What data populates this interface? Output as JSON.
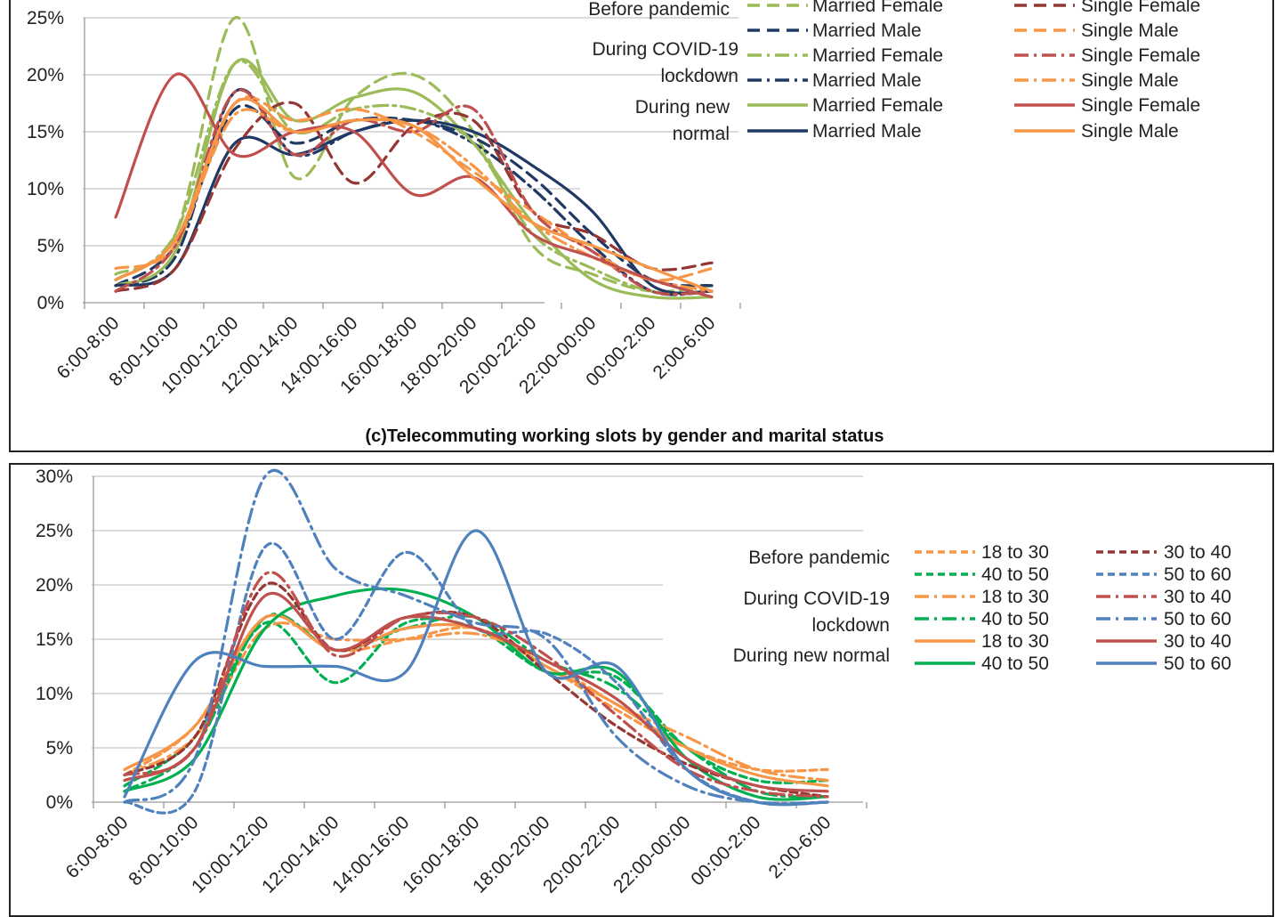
{
  "chart_data": [
    {
      "type": "line",
      "title": "(c)Telecommuting working slots by gender and marital status",
      "categories": [
        "6:00-8:00",
        "8:00-10:00",
        "10:00-12:00",
        "12:00-14:00",
        "14:00-16:00",
        "16:00-18:00",
        "18:00-20:00",
        "20:00-22:00",
        "22:00-00:00",
        "00:00-2:00",
        "2:00-6:00"
      ],
      "ylim": [
        0,
        25
      ],
      "y_ticks": [
        "0%",
        "5%",
        "10%",
        "15%",
        "20%",
        "25%"
      ],
      "grid": true,
      "legend_position": "top-right",
      "legend_groups": [
        "Before pandemic",
        "During COVID-19 lockdown",
        "During new normal"
      ],
      "series": [
        {
          "name": "Married Female",
          "group": "Before pandemic",
          "color": "#9bbb59",
          "dash": "long-dash",
          "values": [
            2.5,
            6,
            25,
            11,
            18,
            20,
            15,
            5,
            2.5,
            1,
            1.5
          ]
        },
        {
          "name": "Married Male",
          "group": "Before pandemic",
          "color": "#1f3864",
          "dash": "long-dash",
          "values": [
            1.5,
            5,
            17,
            14,
            16,
            16,
            14.5,
            11,
            6,
            2,
            1.5
          ]
        },
        {
          "name": "Married Female",
          "group": "During COVID-19 lockdown",
          "color": "#9bbb59",
          "dash": "dash-dot",
          "values": [
            2,
            6,
            21,
            15,
            17,
            17,
            14,
            6,
            3,
            1,
            1
          ]
        },
        {
          "name": "Married Male",
          "group": "During COVID-19 lockdown",
          "color": "#1f3864",
          "dash": "dash-dot",
          "values": [
            1.5,
            4,
            18.5,
            13,
            15,
            16,
            14,
            10,
            5,
            1,
            1
          ]
        },
        {
          "name": "Married Female",
          "group": "During new normal",
          "color": "#9bbb59",
          "dash": "solid",
          "values": [
            1.5,
            4.5,
            21,
            16,
            18,
            18.5,
            14,
            7,
            2,
            0.5,
            0.5
          ]
        },
        {
          "name": "Married Male",
          "group": "During new normal",
          "color": "#1f3864",
          "dash": "solid",
          "values": [
            1.5,
            3,
            14,
            13,
            15,
            16,
            15,
            12,
            8,
            1.5,
            1
          ]
        },
        {
          "name": "Single Female",
          "group": "Before pandemic",
          "color": "#943634",
          "dash": "long-dash",
          "values": [
            1,
            3,
            13.5,
            17.5,
            10.5,
            15.5,
            16,
            8,
            6,
            3,
            3.5
          ]
        },
        {
          "name": "Single Male",
          "group": "Before pandemic",
          "color": "#f79646",
          "dash": "long-dash",
          "values": [
            3,
            5,
            17.5,
            16,
            17,
            15,
            11.5,
            8,
            4.5,
            2,
            3
          ]
        },
        {
          "name": "Single Female",
          "group": "During COVID-19 lockdown",
          "color": "#c0504d",
          "dash": "dash-dot",
          "values": [
            1,
            5,
            18.5,
            13,
            16,
            15,
            17,
            8,
            4.5,
            1,
            1
          ]
        },
        {
          "name": "Single Male",
          "group": "During COVID-19 lockdown",
          "color": "#f79646",
          "dash": "dash-dot",
          "values": [
            2,
            5.5,
            16.5,
            15,
            16,
            15.5,
            12,
            7,
            4,
            2,
            1
          ]
        },
        {
          "name": "Single Female",
          "group": "During new normal",
          "color": "#c0504d",
          "dash": "solid",
          "values": [
            7.5,
            20,
            13,
            15,
            15,
            9.5,
            11,
            6,
            4,
            2,
            0.5
          ]
        },
        {
          "name": "Single Male",
          "group": "During new normal",
          "color": "#f79646",
          "dash": "solid",
          "values": [
            2,
            5.5,
            17.5,
            15,
            16,
            15.5,
            11,
            7,
            5,
            3,
            1
          ]
        }
      ]
    },
    {
      "type": "line",
      "title": "",
      "categories": [
        "6:00-8:00",
        "8:00-10:00",
        "10:00-12:00",
        "12:00-14:00",
        "14:00-16:00",
        "16:00-18:00",
        "18:00-20:00",
        "20:00-22:00",
        "22:00-00:00",
        "00:00-2:00",
        "2:00-6:00"
      ],
      "ylim": [
        0,
        30
      ],
      "y_ticks": [
        "0%",
        "5%",
        "10%",
        "15%",
        "20%",
        "25%",
        "30%"
      ],
      "grid": true,
      "legend_position": "right",
      "legend_groups": [
        "Before pandemic",
        "During COVID-19 lockdown",
        "During new normal"
      ],
      "series": [
        {
          "name": "18 to 30",
          "group": "Before pandemic",
          "color": "#f79646",
          "dash": "short-dash",
          "values": [
            2.5,
            7,
            17,
            14,
            15,
            16,
            12.5,
            8.5,
            5,
            3,
            3
          ]
        },
        {
          "name": "40 to 50",
          "group": "Before pandemic",
          "color": "#00b050",
          "dash": "short-dash",
          "values": [
            1.5,
            6,
            16.5,
            11,
            16.5,
            16,
            12,
            11.5,
            5,
            2,
            2
          ]
        },
        {
          "name": "18 to 30",
          "group": "During COVID-19 lockdown",
          "color": "#f79646",
          "dash": "dash-dot",
          "values": [
            2.5,
            6,
            16,
            15,
            15,
            15.5,
            13,
            9,
            6,
            3,
            2
          ]
        },
        {
          "name": "40 to 50",
          "group": "During COVID-19 lockdown",
          "color": "#00b050",
          "dash": "dash-dot",
          "values": [
            1,
            5,
            17,
            14,
            16,
            17,
            13,
            10.5,
            5,
            1,
            0.5
          ]
        },
        {
          "name": "18 to 30",
          "group": "During new normal",
          "color": "#f79646",
          "dash": "solid",
          "values": [
            3,
            7,
            17,
            14,
            16,
            16,
            12.5,
            9,
            5,
            2.5,
            1.5
          ]
        },
        {
          "name": "40 to 50",
          "group": "During new normal",
          "color": "#00b050",
          "dash": "solid",
          "values": [
            1,
            4,
            16,
            19,
            19.5,
            17,
            12,
            12,
            4,
            0.5,
            0.5
          ]
        },
        {
          "name": "30 to 40",
          "group": "Before pandemic",
          "color": "#943634",
          "dash": "short-dash",
          "values": [
            2.5,
            6,
            20,
            14,
            17,
            17,
            12,
            7,
            3.5,
            1.5,
            0.5
          ]
        },
        {
          "name": "50 to 60",
          "group": "Before pandemic",
          "color": "#4f81bd",
          "dash": "short-dash",
          "values": [
            0,
            1,
            23.5,
            15,
            23,
            16,
            15.5,
            11,
            3,
            0,
            0
          ]
        },
        {
          "name": "30 to 40",
          "group": "During COVID-19 lockdown",
          "color": "#c0504d",
          "dash": "dash-dot",
          "values": [
            2.5,
            5,
            21,
            13.5,
            17,
            17,
            13.5,
            8,
            3,
            1,
            0.5
          ]
        },
        {
          "name": "50 to 60",
          "group": "During COVID-19 lockdown",
          "color": "#4f81bd",
          "dash": "dash-dot",
          "values": [
            0,
            4,
            30,
            21.5,
            19,
            16.5,
            15,
            6,
            1.5,
            0,
            0
          ]
        },
        {
          "name": "30 to 40",
          "group": "During new normal",
          "color": "#c0504d",
          "dash": "solid",
          "values": [
            2,
            5,
            19,
            14,
            17,
            16,
            13,
            9.5,
            4,
            1.5,
            1
          ]
        },
        {
          "name": "50 to 60",
          "group": "During new normal",
          "color": "#4f81bd",
          "dash": "solid",
          "values": [
            0.5,
            13,
            12.5,
            12.5,
            12,
            25,
            12,
            12.5,
            3,
            0,
            0
          ]
        }
      ]
    }
  ]
}
